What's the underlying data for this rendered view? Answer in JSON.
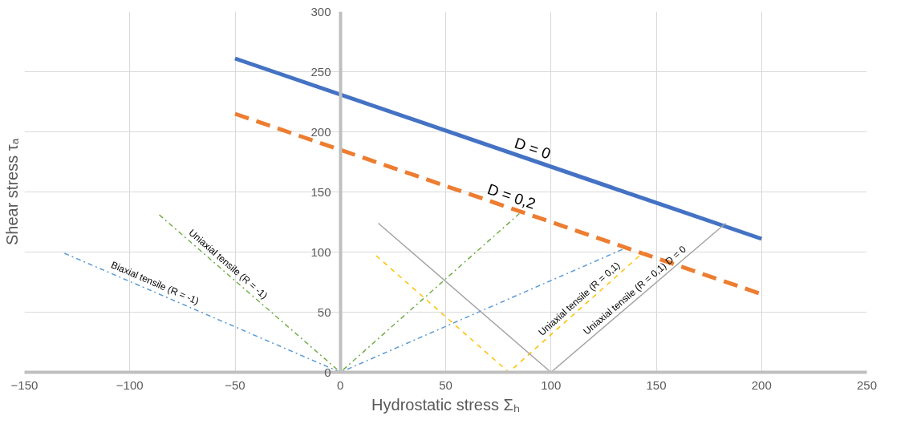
{
  "chart_data": {
    "type": "line",
    "xlabel": "Hydrostatic stress Σₕ",
    "ylabel": "Shear stress τₐ",
    "xlim": [
      -150,
      250
    ],
    "ylim": [
      0,
      300
    ],
    "xticks": [
      -150,
      -100,
      -50,
      0,
      50,
      100,
      150,
      200,
      250
    ],
    "yticks": [
      0,
      50,
      100,
      150,
      200,
      250,
      300
    ],
    "grid": true,
    "marker": "none",
    "series": [
      {
        "name": "D = 0",
        "color": "#4472c4",
        "x": [
          -50,
          200
        ],
        "values": [
          261,
          111
        ],
        "line_style": "solid"
      },
      {
        "name": "D = 0,2",
        "color": "#ed7d31",
        "x": [
          -50,
          200
        ],
        "values": [
          215,
          65
        ],
        "line_style": "dashed"
      },
      {
        "name": "Biaxial tensile (R = -1)",
        "color": "#5b9bd5",
        "x": [
          -131,
          0,
          135
        ],
        "values": [
          99,
          0,
          103
        ],
        "line_style": "dashdot"
      },
      {
        "name": "Uniaxial tensile (R = -1)",
        "color": "#70ad47",
        "x": [
          -86,
          0,
          85
        ],
        "values": [
          131,
          0,
          132
        ],
        "line_style": "dashdot"
      },
      {
        "name": "Uniaxial tensile (R = 0,1)",
        "color": "#ffc000",
        "x": [
          17,
          80,
          144
        ],
        "values": [
          97,
          0,
          100
        ],
        "line_style": "dashed"
      },
      {
        "name": "Uniaxial tensile (R = 0,1) D = 0",
        "color": "#a5a5a5",
        "x": [
          18,
          100,
          183
        ],
        "values": [
          124,
          0,
          124
        ],
        "line_style": "solid"
      }
    ]
  }
}
